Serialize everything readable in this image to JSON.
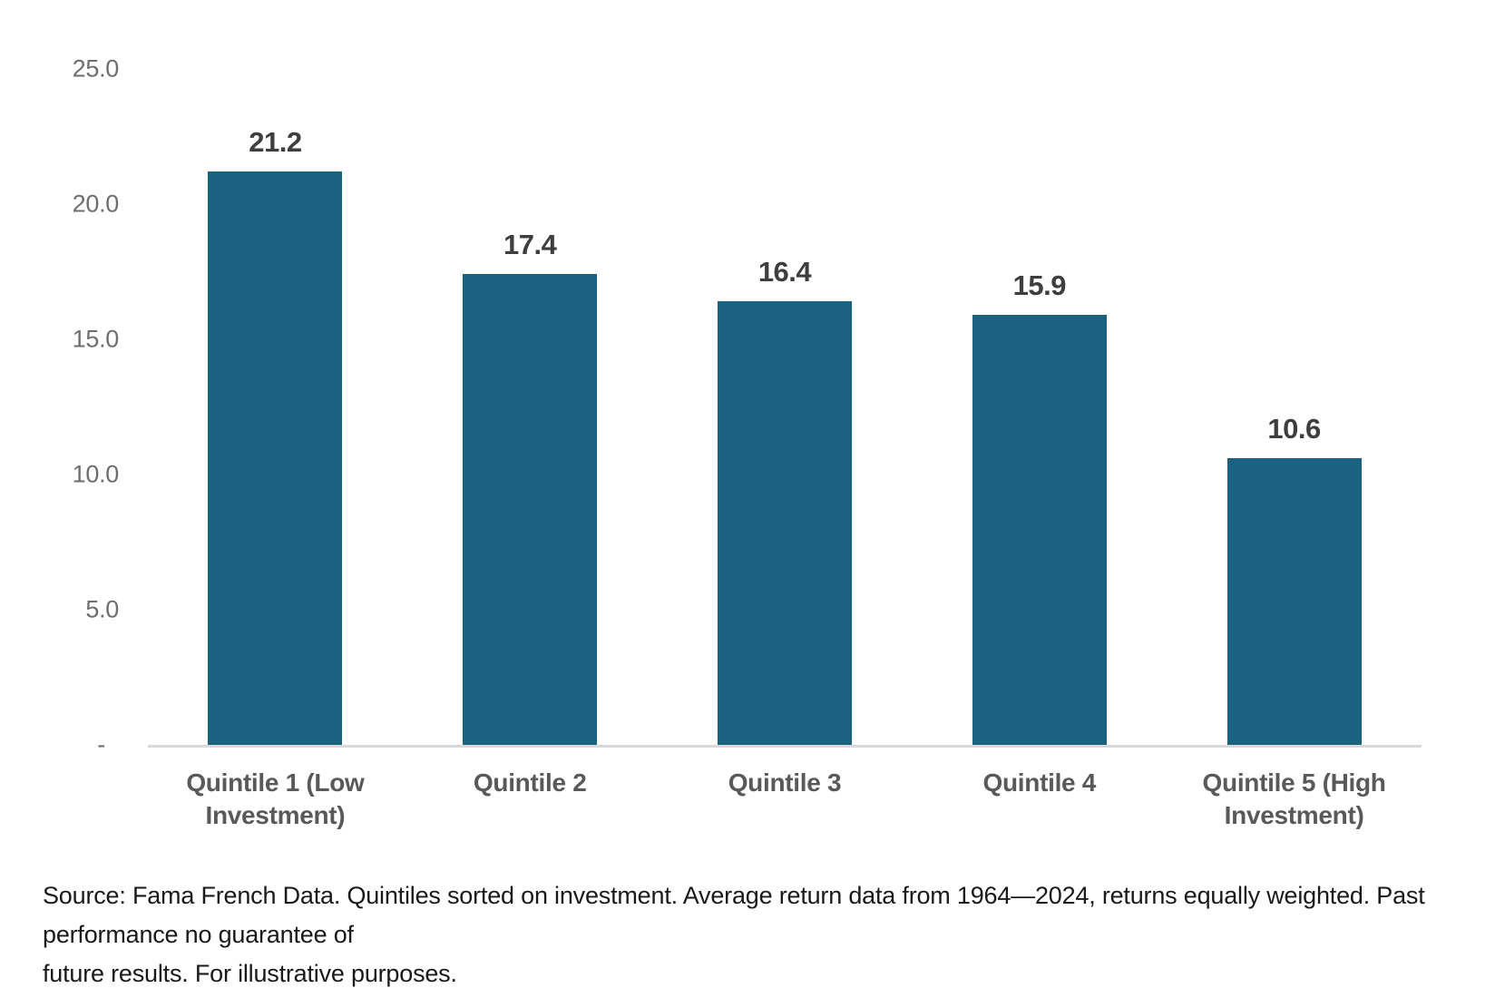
{
  "chart_data": {
    "type": "bar",
    "title": "",
    "xlabel": "",
    "ylabel": "",
    "categories": [
      "Quintile 1 (Low Investment)",
      "Quintile 2",
      "Quintile 3",
      "Quintile 4",
      "Quintile 5 (High Investment)"
    ],
    "category_display": [
      "Quintile 1 (Low\nInvestment)",
      "Quintile 2",
      "Quintile 3",
      "Quintile 4",
      "Quintile 5 (High\nInvestment)"
    ],
    "values": [
      21.2,
      17.4,
      16.4,
      15.9,
      10.6
    ],
    "value_labels": [
      "21.2",
      "17.4",
      "16.4",
      "15.9",
      "10.6"
    ],
    "ylim": [
      0,
      25
    ],
    "y_ticks": [
      {
        "value": 25,
        "label": "25.0"
      },
      {
        "value": 20,
        "label": "20.0"
      },
      {
        "value": 15,
        "label": "15.0"
      },
      {
        "value": 10,
        "label": "10.0"
      },
      {
        "value": 5,
        "label": "5.0"
      },
      {
        "value": 0,
        "label": "-"
      }
    ],
    "grid": false,
    "legend": null,
    "bar_color": "#1b6180",
    "axis_line_color": "#d9d9d9"
  },
  "footnote": {
    "lines": [
      "Source: Fama French Data. Quintiles sorted on investment. Average return data from 1964—2024, returns equally weighted. Past performance no guarantee of",
      "future results. For illustrative purposes."
    ]
  }
}
